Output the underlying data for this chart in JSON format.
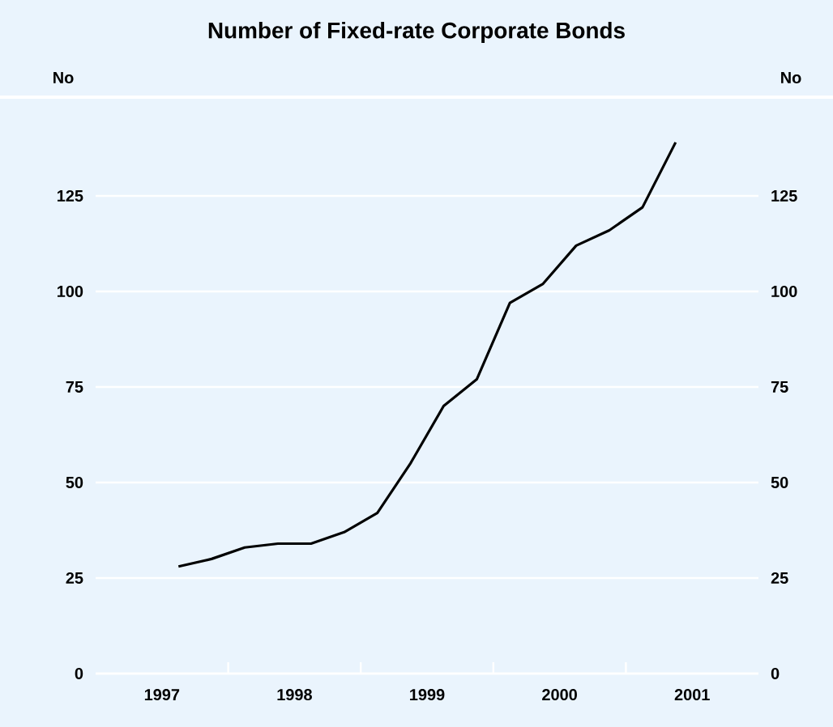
{
  "chart_data": {
    "type": "line",
    "title": "Number of Fixed-rate Corporate Bonds",
    "ylabel": "No",
    "y2label": "No",
    "x": [
      1997.625,
      1997.875,
      1998.125,
      1998.375,
      1998.625,
      1998.875,
      1999.125,
      1999.375,
      1999.625,
      1999.875,
      2000.125,
      2000.375,
      2000.625,
      2000.875,
      2001.125,
      2001.375
    ],
    "series": [
      {
        "color": "#000000",
        "values": [
          28,
          30,
          33,
          34,
          34,
          37,
          42,
          55,
          70,
          77,
          97,
          102,
          112,
          116,
          122,
          139
        ]
      }
    ],
    "xlim": [
      1997,
      2002
    ],
    "xticks": [
      {
        "value": 1997.5,
        "label": "1997"
      },
      {
        "value": 1998,
        "label": null
      },
      {
        "value": 1998.5,
        "label": "1998"
      },
      {
        "value": 1999,
        "label": null
      },
      {
        "value": 1999.5,
        "label": "1999"
      },
      {
        "value": 2000,
        "label": null
      },
      {
        "value": 2000.5,
        "label": "2000"
      },
      {
        "value": 2001,
        "label": null
      },
      {
        "value": 2001.5,
        "label": "2001"
      }
    ],
    "ylim": [
      0,
      150
    ],
    "yticks": [
      0,
      25,
      50,
      75,
      100,
      125
    ],
    "y2lim": [
      0,
      150
    ],
    "y2ticks": [
      0,
      25,
      50,
      75,
      100,
      125
    ],
    "grid": "y",
    "marker": "none",
    "line_style": "solid"
  }
}
